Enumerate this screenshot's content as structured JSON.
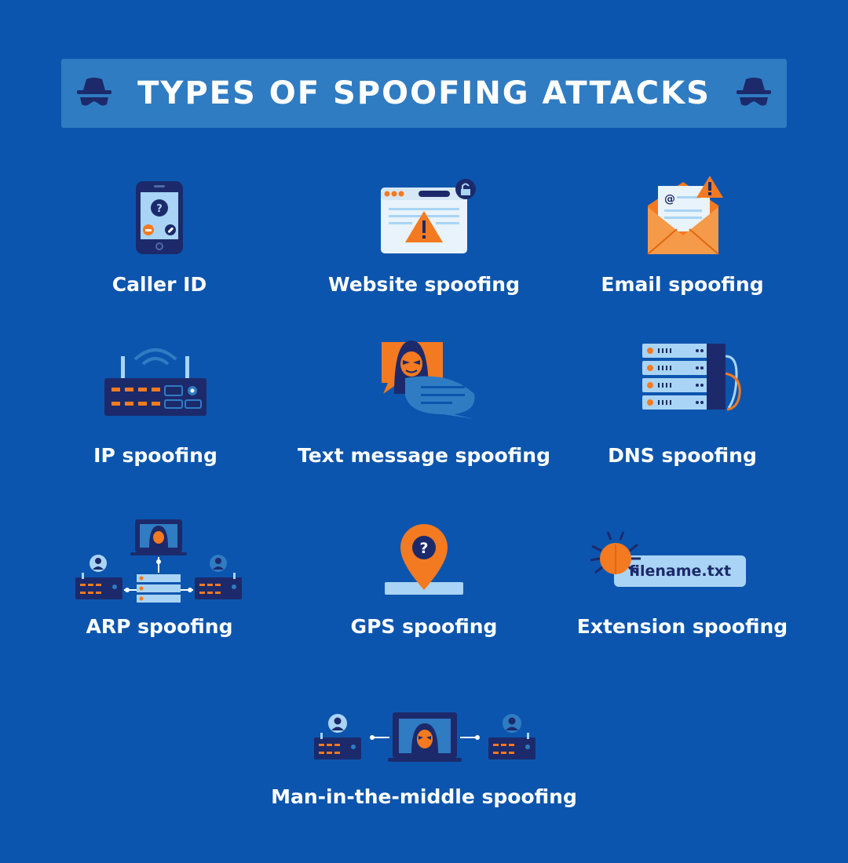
{
  "header": {
    "title": "TYPES OF SPOOFING ATTACKS"
  },
  "items": [
    {
      "label": "Caller ID",
      "icon": "smartphone-call-icon"
    },
    {
      "label": "Website spoofing",
      "icon": "browser-warning-icon"
    },
    {
      "label": "Email spoofing",
      "icon": "envelope-warning-icon"
    },
    {
      "label": "IP spoofing",
      "icon": "router-icon"
    },
    {
      "label": "Text message spoofing",
      "icon": "hacker-chat-icon"
    },
    {
      "label": "DNS spoofing",
      "icon": "server-rack-icon"
    },
    {
      "label": "ARP spoofing",
      "icon": "network-hacker-icon"
    },
    {
      "label": "GPS spoofing",
      "icon": "map-pin-question-icon"
    },
    {
      "label": "Extension spoofing",
      "icon": "bug-file-icon"
    },
    {
      "label": "Man-in-the-middle spoofing",
      "icon": "man-in-the-middle-icon"
    }
  ],
  "extension": {
    "filename": "filename.txt"
  },
  "colors": {
    "background": "#0c55ae",
    "banner": "#2f7cc3",
    "navy": "#1c2a6b",
    "orange": "#f37a20",
    "light_blue": "#a9d4f5"
  }
}
